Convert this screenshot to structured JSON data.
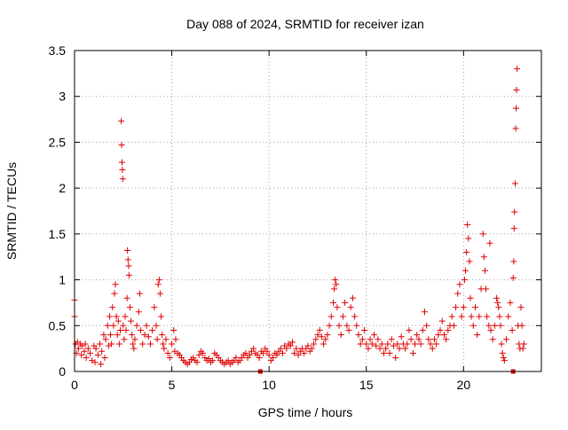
{
  "chart_data": {
    "type": "scatter",
    "title": "Day 088 of 2024, SRMTID for receiver izan",
    "xlabel": "GPS time / hours",
    "ylabel": "SRMTID / TECUs",
    "xlim": [
      0,
      24
    ],
    "ylim": [
      0,
      3.5
    ],
    "grid": true,
    "marker": "+",
    "marker_color": "#e00000",
    "x_ticks": [
      0,
      5,
      10,
      15,
      20
    ],
    "x_tick_labels": [
      "0",
      "5",
      "10",
      "15",
      "20"
    ],
    "y_ticks": [
      0,
      0.5,
      1,
      1.5,
      2,
      2.5,
      3,
      3.5
    ],
    "y_tick_labels": [
      "0",
      "0.5",
      "1",
      "1.5",
      "2",
      "2.5",
      "3",
      "3.5"
    ],
    "series": [
      {
        "name": "SRMTID",
        "points": [
          [
            0.0,
            0.78
          ],
          [
            0.0,
            0.6
          ],
          [
            0.05,
            0.3
          ],
          [
            0.1,
            0.2
          ],
          [
            0.15,
            0.32
          ],
          [
            0.2,
            0.25
          ],
          [
            0.3,
            0.3
          ],
          [
            0.35,
            0.18
          ],
          [
            0.4,
            0.28
          ],
          [
            0.5,
            0.22
          ],
          [
            0.55,
            0.3
          ],
          [
            0.6,
            0.15
          ],
          [
            0.7,
            0.25
          ],
          [
            0.8,
            0.2
          ],
          [
            0.9,
            0.12
          ],
          [
            1.0,
            0.28
          ],
          [
            1.05,
            0.1
          ],
          [
            1.1,
            0.25
          ],
          [
            1.2,
            0.18
          ],
          [
            1.3,
            0.3
          ],
          [
            1.35,
            0.08
          ],
          [
            1.4,
            0.22
          ],
          [
            1.5,
            0.4
          ],
          [
            1.55,
            0.15
          ],
          [
            1.6,
            0.35
          ],
          [
            1.7,
            0.5
          ],
          [
            1.75,
            0.28
          ],
          [
            1.8,
            0.6
          ],
          [
            1.85,
            0.4
          ],
          [
            1.9,
            0.3
          ],
          [
            1.95,
            0.7
          ],
          [
            2.0,
            0.5
          ],
          [
            2.05,
            0.85
          ],
          [
            2.1,
            0.95
          ],
          [
            2.15,
            0.6
          ],
          [
            2.2,
            0.4
          ],
          [
            2.25,
            0.55
          ],
          [
            2.3,
            0.3
          ],
          [
            2.35,
            0.45
          ],
          [
            2.4,
            2.73
          ],
          [
            2.42,
            2.47
          ],
          [
            2.44,
            2.28
          ],
          [
            2.46,
            2.2
          ],
          [
            2.48,
            2.1
          ],
          [
            2.5,
            0.5
          ],
          [
            2.55,
            0.35
          ],
          [
            2.6,
            0.6
          ],
          [
            2.65,
            0.45
          ],
          [
            2.7,
            0.8
          ],
          [
            2.72,
            1.32
          ],
          [
            2.75,
            1.22
          ],
          [
            2.78,
            1.15
          ],
          [
            2.8,
            1.05
          ],
          [
            2.85,
            0.7
          ],
          [
            2.9,
            0.55
          ],
          [
            2.95,
            0.4
          ],
          [
            3.0,
            0.3
          ],
          [
            3.05,
            0.25
          ],
          [
            3.1,
            0.35
          ],
          [
            3.2,
            0.5
          ],
          [
            3.3,
            0.65
          ],
          [
            3.35,
            0.85
          ],
          [
            3.4,
            0.45
          ],
          [
            3.5,
            0.3
          ],
          [
            3.6,
            0.4
          ],
          [
            3.7,
            0.5
          ],
          [
            3.8,
            0.38
          ],
          [
            3.9,
            0.3
          ],
          [
            4.0,
            0.45
          ],
          [
            4.1,
            0.7
          ],
          [
            4.2,
            0.5
          ],
          [
            4.25,
            0.35
          ],
          [
            4.3,
            0.95
          ],
          [
            4.35,
            1.0
          ],
          [
            4.4,
            0.85
          ],
          [
            4.45,
            0.6
          ],
          [
            4.5,
            0.4
          ],
          [
            4.55,
            0.3
          ],
          [
            4.6,
            0.25
          ],
          [
            4.7,
            0.35
          ],
          [
            4.8,
            0.2
          ],
          [
            4.9,
            0.15
          ],
          [
            5.0,
            0.3
          ],
          [
            5.1,
            0.45
          ],
          [
            5.15,
            0.22
          ],
          [
            5.2,
            0.35
          ],
          [
            5.3,
            0.2
          ],
          [
            5.4,
            0.18
          ],
          [
            5.5,
            0.15
          ],
          [
            5.6,
            0.12
          ],
          [
            5.7,
            0.1
          ],
          [
            5.8,
            0.08
          ],
          [
            5.9,
            0.1
          ],
          [
            6.0,
            0.13
          ],
          [
            6.1,
            0.15
          ],
          [
            6.2,
            0.12
          ],
          [
            6.3,
            0.1
          ],
          [
            6.4,
            0.18
          ],
          [
            6.5,
            0.22
          ],
          [
            6.6,
            0.2
          ],
          [
            6.7,
            0.15
          ],
          [
            6.8,
            0.12
          ],
          [
            6.9,
            0.14
          ],
          [
            7.0,
            0.1
          ],
          [
            7.1,
            0.12
          ],
          [
            7.2,
            0.2
          ],
          [
            7.3,
            0.18
          ],
          [
            7.4,
            0.15
          ],
          [
            7.5,
            0.12
          ],
          [
            7.6,
            0.1
          ],
          [
            7.7,
            0.08
          ],
          [
            7.8,
            0.1
          ],
          [
            7.9,
            0.12
          ],
          [
            8.0,
            0.08
          ],
          [
            8.1,
            0.1
          ],
          [
            8.2,
            0.12
          ],
          [
            8.3,
            0.15
          ],
          [
            8.4,
            0.1
          ],
          [
            8.5,
            0.12
          ],
          [
            8.6,
            0.15
          ],
          [
            8.7,
            0.18
          ],
          [
            8.8,
            0.2
          ],
          [
            8.9,
            0.15
          ],
          [
            9.0,
            0.18
          ],
          [
            9.1,
            0.22
          ],
          [
            9.2,
            0.25
          ],
          [
            9.3,
            0.2
          ],
          [
            9.4,
            0.18
          ],
          [
            9.5,
            0.15
          ],
          [
            9.6,
            0.22
          ],
          [
            9.7,
            0.2
          ],
          [
            9.8,
            0.25
          ],
          [
            9.9,
            0.22
          ],
          [
            10.0,
            0.18
          ],
          [
            10.1,
            0.12
          ],
          [
            10.2,
            0.15
          ],
          [
            10.3,
            0.2
          ],
          [
            10.4,
            0.18
          ],
          [
            10.5,
            0.22
          ],
          [
            10.6,
            0.25
          ],
          [
            10.7,
            0.2
          ],
          [
            10.8,
            0.28
          ],
          [
            10.9,
            0.25
          ],
          [
            11.0,
            0.3
          ],
          [
            11.1,
            0.28
          ],
          [
            11.2,
            0.32
          ],
          [
            11.3,
            0.2
          ],
          [
            11.4,
            0.25
          ],
          [
            11.5,
            0.18
          ],
          [
            11.6,
            0.22
          ],
          [
            11.7,
            0.25
          ],
          [
            11.8,
            0.2
          ],
          [
            11.9,
            0.25
          ],
          [
            12.0,
            0.28
          ],
          [
            12.1,
            0.22
          ],
          [
            12.2,
            0.25
          ],
          [
            12.3,
            0.3
          ],
          [
            12.4,
            0.35
          ],
          [
            12.5,
            0.4
          ],
          [
            12.6,
            0.45
          ],
          [
            12.7,
            0.38
          ],
          [
            12.8,
            0.3
          ],
          [
            12.9,
            0.35
          ],
          [
            13.0,
            0.4
          ],
          [
            13.1,
            0.5
          ],
          [
            13.2,
            0.6
          ],
          [
            13.3,
            0.75
          ],
          [
            13.35,
            0.9
          ],
          [
            13.4,
            1.0
          ],
          [
            13.45,
            0.95
          ],
          [
            13.5,
            0.7
          ],
          [
            13.6,
            0.5
          ],
          [
            13.7,
            0.4
          ],
          [
            13.8,
            0.6
          ],
          [
            13.9,
            0.75
          ],
          [
            14.0,
            0.5
          ],
          [
            14.1,
            0.45
          ],
          [
            14.2,
            0.7
          ],
          [
            14.3,
            0.8
          ],
          [
            14.4,
            0.6
          ],
          [
            14.5,
            0.5
          ],
          [
            14.6,
            0.4
          ],
          [
            14.7,
            0.3
          ],
          [
            14.8,
            0.35
          ],
          [
            14.9,
            0.45
          ],
          [
            15.0,
            0.3
          ],
          [
            15.1,
            0.25
          ],
          [
            15.2,
            0.35
          ],
          [
            15.3,
            0.3
          ],
          [
            15.4,
            0.4
          ],
          [
            15.5,
            0.28
          ],
          [
            15.6,
            0.35
          ],
          [
            15.7,
            0.25
          ],
          [
            15.8,
            0.3
          ],
          [
            15.9,
            0.2
          ],
          [
            16.0,
            0.25
          ],
          [
            16.1,
            0.3
          ],
          [
            16.2,
            0.2
          ],
          [
            16.3,
            0.35
          ],
          [
            16.4,
            0.28
          ],
          [
            16.5,
            0.15
          ],
          [
            16.6,
            0.3
          ],
          [
            16.7,
            0.25
          ],
          [
            16.8,
            0.38
          ],
          [
            16.9,
            0.3
          ],
          [
            17.0,
            0.25
          ],
          [
            17.1,
            0.3
          ],
          [
            17.2,
            0.45
          ],
          [
            17.3,
            0.35
          ],
          [
            17.4,
            0.2
          ],
          [
            17.5,
            0.3
          ],
          [
            17.6,
            0.4
          ],
          [
            17.7,
            0.35
          ],
          [
            17.8,
            0.3
          ],
          [
            17.9,
            0.45
          ],
          [
            18.0,
            0.65
          ],
          [
            18.1,
            0.5
          ],
          [
            18.2,
            0.35
          ],
          [
            18.3,
            0.3
          ],
          [
            18.4,
            0.25
          ],
          [
            18.5,
            0.35
          ],
          [
            18.6,
            0.3
          ],
          [
            18.7,
            0.4
          ],
          [
            18.8,
            0.45
          ],
          [
            18.9,
            0.55
          ],
          [
            19.0,
            0.4
          ],
          [
            19.1,
            0.35
          ],
          [
            19.2,
            0.45
          ],
          [
            19.3,
            0.5
          ],
          [
            19.4,
            0.6
          ],
          [
            19.5,
            0.5
          ],
          [
            19.6,
            0.7
          ],
          [
            19.7,
            0.85
          ],
          [
            19.8,
            0.95
          ],
          [
            19.9,
            0.6
          ],
          [
            20.0,
            0.7
          ],
          [
            20.05,
            1.0
          ],
          [
            20.1,
            1.1
          ],
          [
            20.15,
            1.3
          ],
          [
            20.2,
            1.6
          ],
          [
            20.25,
            1.45
          ],
          [
            20.3,
            1.2
          ],
          [
            20.35,
            0.8
          ],
          [
            20.4,
            0.6
          ],
          [
            20.5,
            0.5
          ],
          [
            20.6,
            0.7
          ],
          [
            20.7,
            0.4
          ],
          [
            20.8,
            0.6
          ],
          [
            20.9,
            0.9
          ],
          [
            21.0,
            1.5
          ],
          [
            21.05,
            1.25
          ],
          [
            21.1,
            1.1
          ],
          [
            21.15,
            0.9
          ],
          [
            21.2,
            0.6
          ],
          [
            21.3,
            0.5
          ],
          [
            21.35,
            1.4
          ],
          [
            21.4,
            0.45
          ],
          [
            21.5,
            0.35
          ],
          [
            21.6,
            0.5
          ],
          [
            21.7,
            0.8
          ],
          [
            21.75,
            0.75
          ],
          [
            21.8,
            0.7
          ],
          [
            21.85,
            0.6
          ],
          [
            21.9,
            0.5
          ],
          [
            21.95,
            0.3
          ],
          [
            22.0,
            0.2
          ],
          [
            22.05,
            0.15
          ],
          [
            22.1,
            0.12
          ],
          [
            22.2,
            0.35
          ],
          [
            22.3,
            0.6
          ],
          [
            22.4,
            0.75
          ],
          [
            22.5,
            0.45
          ],
          [
            22.55,
            1.02
          ],
          [
            22.58,
            1.2
          ],
          [
            22.6,
            1.56
          ],
          [
            22.62,
            1.74
          ],
          [
            22.65,
            2.05
          ],
          [
            22.68,
            2.65
          ],
          [
            22.7,
            2.87
          ],
          [
            22.72,
            3.07
          ],
          [
            22.75,
            3.3
          ],
          [
            22.8,
            0.5
          ],
          [
            22.85,
            0.3
          ],
          [
            22.9,
            0.25
          ],
          [
            22.95,
            0.7
          ],
          [
            23.0,
            0.5
          ],
          [
            23.05,
            0.25
          ],
          [
            23.1,
            0.3
          ]
        ]
      }
    ]
  }
}
